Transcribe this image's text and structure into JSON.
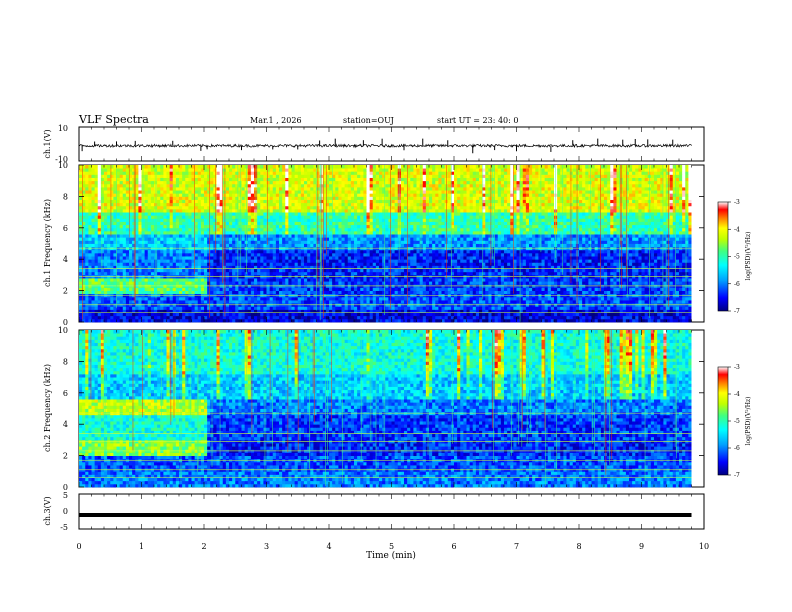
{
  "header": {
    "title": "VLF Spectra",
    "date": "Mar.1 , 2026",
    "station": "station=OUJ",
    "start": "start UT = 23: 40: 0"
  },
  "chart_data": [
    {
      "panel": "waveform-ch1",
      "type": "line",
      "ylabel": "ch.1(V)",
      "ylim": [
        -10,
        10
      ],
      "yticks": [
        "10",
        "-10"
      ],
      "xlim": [
        0,
        10
      ],
      "description_of_series": "noisy waveform around -1 V with sparse spikes up to about +/-3 V",
      "baseline_value": -1,
      "spike_times_min": [
        0.05,
        0.25,
        0.6,
        0.9,
        1.5,
        1.95,
        2.05,
        2.6,
        3.1,
        3.5,
        3.85,
        4.1,
        4.55,
        4.85,
        5.2,
        5.5,
        5.9,
        6.3,
        6.65,
        7.0,
        7.55,
        7.9,
        8.3,
        8.7,
        8.9,
        9.1,
        9.5
      ]
    },
    {
      "panel": "spectrogram-ch1",
      "type": "heatmap",
      "ylabel": "ch.1 Frequency (kHz)",
      "ylim": [
        0,
        10
      ],
      "yticks": [
        "0",
        "2",
        "4",
        "6",
        "8",
        "10"
      ],
      "xlim": [
        0,
        10
      ],
      "data_extent_min": [
        0,
        9.8
      ],
      "colorbar": {
        "label": "log(PSD)(V²/Hz)",
        "range": [
          -7,
          -3
        ],
        "ticks": [
          "-3",
          "-4",
          "-5",
          "-6",
          "-7"
        ]
      },
      "regime_change_min": 2.05,
      "bands_khz": [
        {
          "from": 0,
          "to": 0.8,
          "level": -6.6
        },
        {
          "from": 0.8,
          "to": 1.9,
          "level": -6.2
        },
        {
          "from": 1.9,
          "to": 2.9,
          "level_before": -4.8,
          "level_after": -6.3
        },
        {
          "from": 2.9,
          "to": 4.6,
          "level_before": -6.0,
          "level_after": -6.4
        },
        {
          "from": 4.6,
          "to": 5.6,
          "level_before": -5.6,
          "level_after": -5.9
        },
        {
          "from": 5.6,
          "to": 7.0,
          "level": -5.0
        },
        {
          "from": 7.0,
          "to": 10.0,
          "level": -4.2
        }
      ]
    },
    {
      "panel": "spectrogram-ch2",
      "type": "heatmap",
      "ylabel": "ch.2 Frequency (kHz)",
      "ylim": [
        0,
        10
      ],
      "yticks": [
        "0",
        "2",
        "4",
        "6",
        "8",
        "10"
      ],
      "xlim": [
        0,
        10
      ],
      "data_extent_min": [
        0,
        9.8
      ],
      "colorbar": {
        "label": "log(PSD)(V²/Hz)",
        "range": [
          -7,
          -3
        ],
        "ticks": [
          "-3",
          "-4",
          "-5",
          "-6",
          "-7"
        ]
      },
      "regime_change_min": 2.05,
      "bands_khz": [
        {
          "from": 0,
          "to": 1.0,
          "level": -6.0
        },
        {
          "from": 1.0,
          "to": 2.0,
          "level": -6.2
        },
        {
          "from": 2.0,
          "to": 3.0,
          "level_before": -4.6,
          "level_after": -6.4
        },
        {
          "from": 3.0,
          "to": 4.6,
          "level_before": -5.2,
          "level_after": -6.3
        },
        {
          "from": 4.6,
          "to": 5.6,
          "level_before": -4.3,
          "level_after": -6.0
        },
        {
          "from": 5.6,
          "to": 7.2,
          "level": -5.6
        },
        {
          "from": 7.2,
          "to": 10.0,
          "level": -5.2
        }
      ]
    },
    {
      "panel": "waveform-ch3",
      "type": "line",
      "ylabel": "ch.3(V)",
      "ylim": [
        -5,
        5
      ],
      "yticks": [
        "5",
        "0",
        "-5"
      ],
      "xlim": [
        0,
        10
      ],
      "baseline_value": -1,
      "xlabel": "Time (min)",
      "xticks": [
        "0",
        "1",
        "2",
        "3",
        "4",
        "5",
        "6",
        "7",
        "8",
        "9",
        "10"
      ]
    }
  ],
  "colors": {
    "colormap": [
      "#000080",
      "#0000ff",
      "#00a0ff",
      "#00ffff",
      "#40ff80",
      "#c0ff00",
      "#ffff00",
      "#ff8000",
      "#ff0000",
      "#ffffff"
    ],
    "colorbar_top": "#ffffff",
    "colorbar_bottom": "#000080"
  }
}
